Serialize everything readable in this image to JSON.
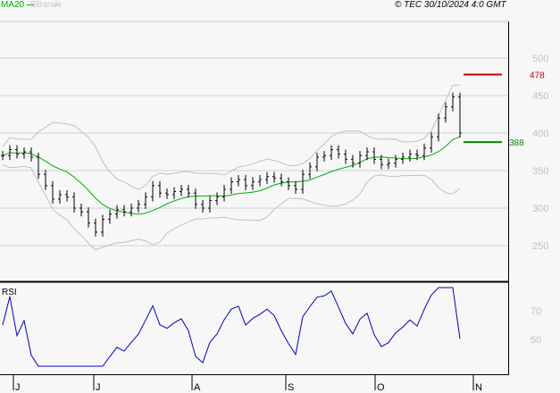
{
  "header": {
    "ma_label": "MA20",
    "bb_label": "BBands",
    "copyright": "© TEC 30/10/2024 4:0 GMT"
  },
  "colors": {
    "ma": "#00b000",
    "bands": "#c0c0c0",
    "price": "#000000",
    "rsi": "#0000c0",
    "target": "#c00000",
    "support": "#008800"
  },
  "chart_data": {
    "type": "line",
    "title": "",
    "y_ticks": [
      "500",
      "450",
      "400",
      "350",
      "300",
      "250"
    ],
    "y_tick_values": [
      500,
      450,
      400,
      350,
      300,
      250
    ],
    "ylim": [
      200,
      520
    ],
    "x_labels": [
      "J",
      "J",
      "A",
      "S",
      "O",
      "N"
    ],
    "closes": [
      370,
      378,
      372,
      375,
      368,
      345,
      330,
      312,
      318,
      315,
      300,
      295,
      280,
      268,
      285,
      292,
      298,
      295,
      300,
      305,
      315,
      330,
      320,
      318,
      322,
      325,
      320,
      305,
      300,
      310,
      315,
      325,
      335,
      338,
      330,
      335,
      338,
      342,
      340,
      335,
      330,
      325,
      345,
      355,
      368,
      370,
      378,
      372,
      365,
      360,
      370,
      375,
      365,
      358,
      360,
      365,
      368,
      372,
      370,
      380,
      395,
      420,
      435,
      448,
      400
    ],
    "levels": [
      {
        "label": "478",
        "value": 478
      },
      {
        "label": "388",
        "value": 388
      }
    ],
    "rsi": {
      "label": "RSI",
      "ticks": [
        "70",
        "50"
      ],
      "tick_values": [
        70,
        50
      ]
    }
  }
}
